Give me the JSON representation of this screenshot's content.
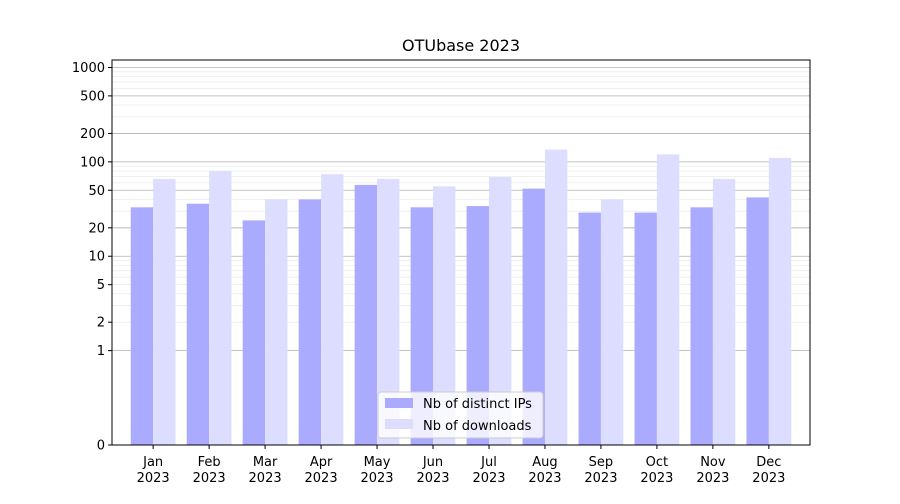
{
  "chart_data": {
    "type": "bar",
    "title": "OTUbase 2023",
    "xlabel": "",
    "ylabel": "",
    "yscale": "symlog",
    "ylim": [
      0,
      1200
    ],
    "yticks": [
      0,
      1,
      2,
      5,
      10,
      20,
      50,
      100,
      200,
      500,
      1000
    ],
    "ytick_labels": [
      "0",
      "1",
      "2",
      "5",
      "10",
      "20",
      "50",
      "100",
      "200",
      "500",
      "1000"
    ],
    "grid": true,
    "legend_position": "lower center",
    "categories": [
      [
        "Jan",
        "2023"
      ],
      [
        "Feb",
        "2023"
      ],
      [
        "Mar",
        "2023"
      ],
      [
        "Apr",
        "2023"
      ],
      [
        "May",
        "2023"
      ],
      [
        "Jun",
        "2023"
      ],
      [
        "Jul",
        "2023"
      ],
      [
        "Aug",
        "2023"
      ],
      [
        "Sep",
        "2023"
      ],
      [
        "Oct",
        "2023"
      ],
      [
        "Nov",
        "2023"
      ],
      [
        "Dec",
        "2023"
      ]
    ],
    "series": [
      {
        "name": "Nb of distinct IPs",
        "color": "#aaaaff",
        "values": [
          33,
          36,
          24,
          40,
          57,
          33,
          34,
          52,
          29,
          29,
          33,
          42
        ]
      },
      {
        "name": "Nb of downloads",
        "color": "#ddddff",
        "values": [
          66,
          80,
          40,
          74,
          66,
          55,
          69,
          135,
          40,
          120,
          66,
          110
        ]
      }
    ]
  }
}
